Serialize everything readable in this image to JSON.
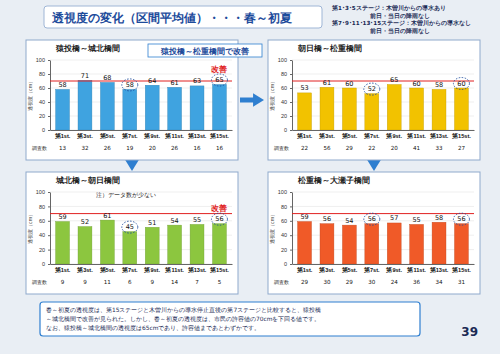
{
  "title": "透視度の変化（区間平均値）・・・春～初夏",
  "notes": [
    "第1･3･5ステージ：木曽川からの導水あり",
    "前日・当日の降雨なし",
    "第7･9･11･13･15ステージ：木曽川からの導水なし",
    "前日・当日の降雨なし"
  ],
  "callout": "猿投橋～松重橋間で改善",
  "footer": [
    "春～初夏の透視度は、第15ステージと木曽川からの導水停止直後の第7ステージと比較すると、猿投橋",
    "～城北橋間で改善が見られた。しかし、春～初夏の透視度は、市民の許容値の70cmを下回る値です。",
    "なお、猿投橋～城北橋間の透視度は65cmであり、許容値まであとわずかです。"
  ],
  "page": "39",
  "chart_data": [
    {
      "type": "bar",
      "title": "猿投橋～城北橋間",
      "categories": [
        "第1st.",
        "第3st.",
        "第5st.",
        "第7st.",
        "第9st.",
        "第11st.",
        "第13st.",
        "第15st."
      ],
      "values": [
        58,
        71,
        68,
        58,
        64,
        61,
        63,
        65
      ],
      "color": "#3fa3e0",
      "ylim": [
        0,
        100
      ],
      "yticks": [
        0,
        20,
        40,
        60,
        80,
        100
      ],
      "ylabel": "透視度（cm）",
      "data_labels": true,
      "grid": true,
      "target": 70,
      "counts_label": "調査数",
      "counts": [
        13,
        32,
        26,
        19,
        20,
        26,
        16,
        16
      ],
      "annotation": "改善"
    },
    {
      "type": "bar",
      "title": "朝日橋～松重橋間",
      "categories": [
        "第1st.",
        "第3st.",
        "第5st.",
        "第7st.",
        "第9st.",
        "第11st.",
        "第13st.",
        "第15st."
      ],
      "values": [
        53,
        61,
        60,
        52,
        65,
        60,
        58,
        60
      ],
      "color": "#f2c200",
      "ylim": [
        0,
        100
      ],
      "yticks": [
        0,
        20,
        40,
        60,
        80,
        100
      ],
      "ylabel": "透視度（cm）",
      "data_labels": true,
      "grid": true,
      "target": 70,
      "counts_label": "調査数",
      "counts": [
        22,
        56,
        29,
        22,
        20,
        41,
        33,
        27
      ]
    },
    {
      "type": "bar",
      "title": "城北橋～朝日橋間",
      "categories": [
        "第1st.",
        "第3st.",
        "第5st.",
        "第7st.",
        "第9st.",
        "第11st.",
        "第13st.",
        "第15st."
      ],
      "values": [
        59,
        52,
        61,
        45,
        51,
        54,
        55,
        56
      ],
      "color": "#8cc63f",
      "ylim": [
        0,
        100
      ],
      "yticks": [
        0,
        20,
        40,
        60,
        80,
        100
      ],
      "ylabel": "透視度（cm）",
      "data_labels": true,
      "grid": true,
      "target": 70,
      "counts_label": "調査数",
      "counts": [
        9,
        9,
        11,
        6,
        9,
        14,
        7,
        5
      ],
      "annotation": "改善",
      "note": "注）データ数が少ない"
    },
    {
      "type": "bar",
      "title": "松重橋～大瀬子橋間",
      "categories": [
        "第1st.",
        "第3st.",
        "第5st.",
        "第7st.",
        "第9st.",
        "第11st.",
        "第13st.",
        "第15st."
      ],
      "values": [
        59,
        56,
        54,
        56,
        57,
        55,
        58,
        56
      ],
      "color": "#f05a28",
      "ylim": [
        0,
        100
      ],
      "yticks": [
        0,
        20,
        40,
        60,
        80,
        100
      ],
      "ylabel": "透視度（cm）",
      "data_labels": true,
      "grid": true,
      "target": 70,
      "counts_label": "調査数",
      "counts": [
        29,
        30,
        29,
        30,
        24,
        36,
        34,
        31
      ]
    }
  ]
}
